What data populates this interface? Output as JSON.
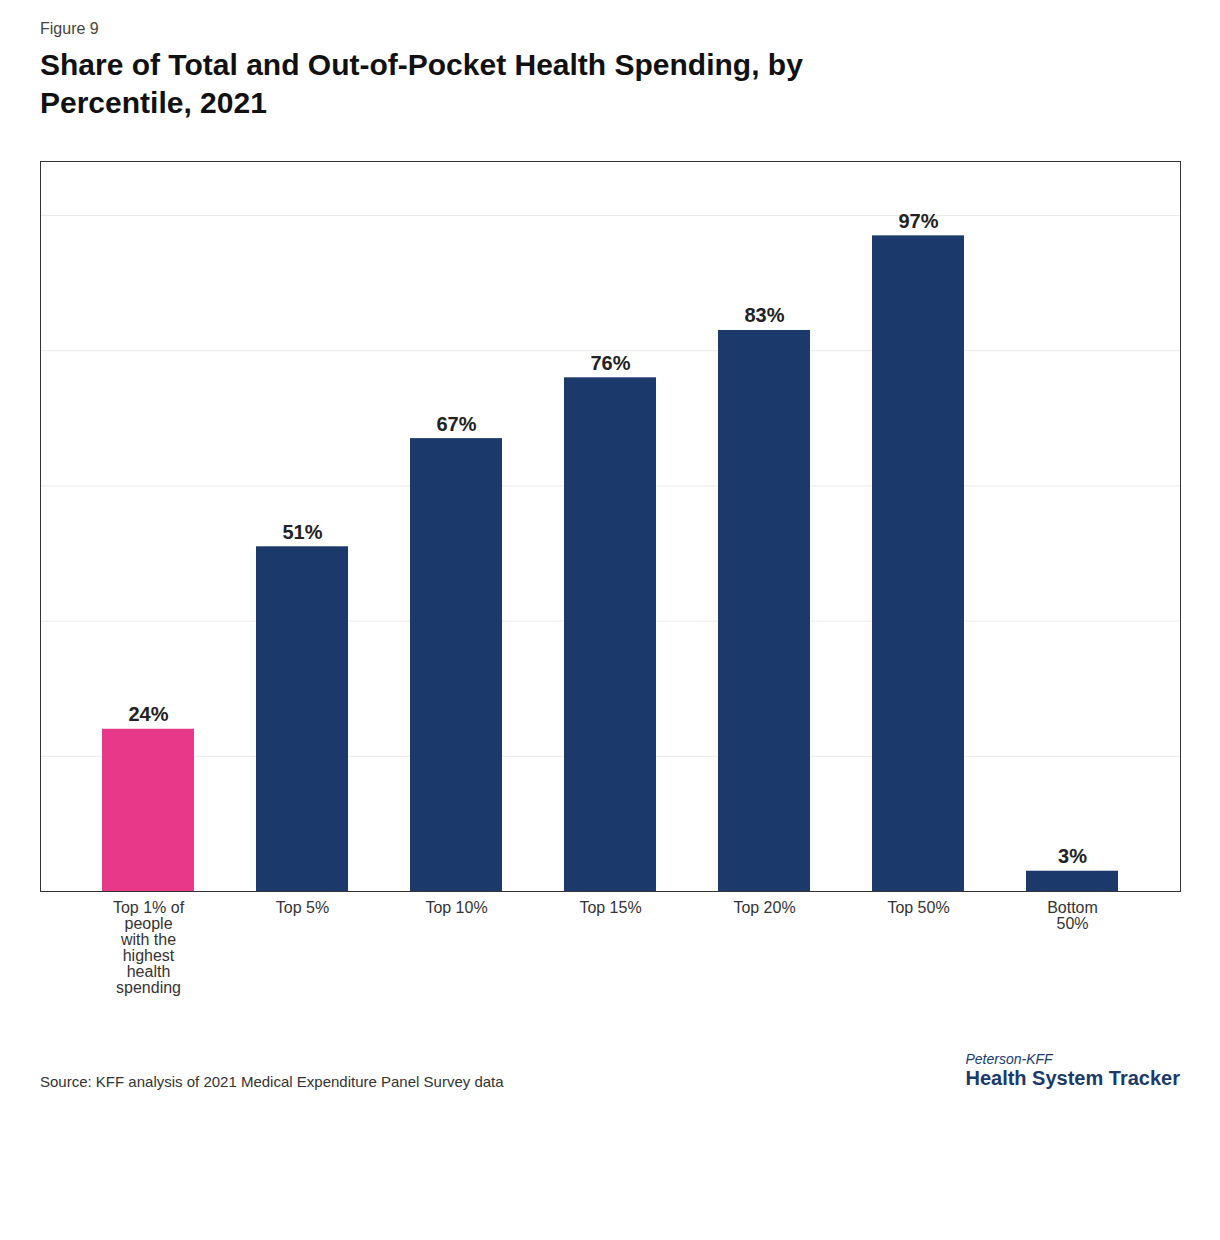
{
  "chart_data": {
    "type": "bar",
    "title": "Share of Total and Out-of-Pocket Health Spending, by\nPercentile, 2021",
    "annotations": [
      "Figure 9",
      "Source: KFF analysis of 2021 Medical Expenditure Panel Survey data",
      "Peterson-KFF",
      "Health System Tracker"
    ],
    "categories": [
      "Top 1% of\npeople\nwith the\nhighest\nhealth\nspending",
      "Top 5%",
      "Top 10%",
      "Top 15%",
      "Top 20%",
      "Top 50%",
      "Bottom\n50%"
    ],
    "values": [
      24,
      51,
      67,
      76,
      83,
      97,
      3
    ],
    "value_labels": [
      "24%",
      "51%",
      "67%",
      "76%",
      "83%",
      "97%",
      "3%"
    ],
    "colors": [
      "#E8388A",
      "#1B3A6B",
      "#1B3A6B",
      "#1B3A6B",
      "#1B3A6B",
      "#1B3A6B",
      "#1B3A6B"
    ],
    "ylim": [
      0,
      108
    ],
    "yticks": [
      0,
      20,
      40,
      60,
      80,
      100
    ],
    "grid": true,
    "data_labels": true,
    "tick_labels": "x"
  }
}
